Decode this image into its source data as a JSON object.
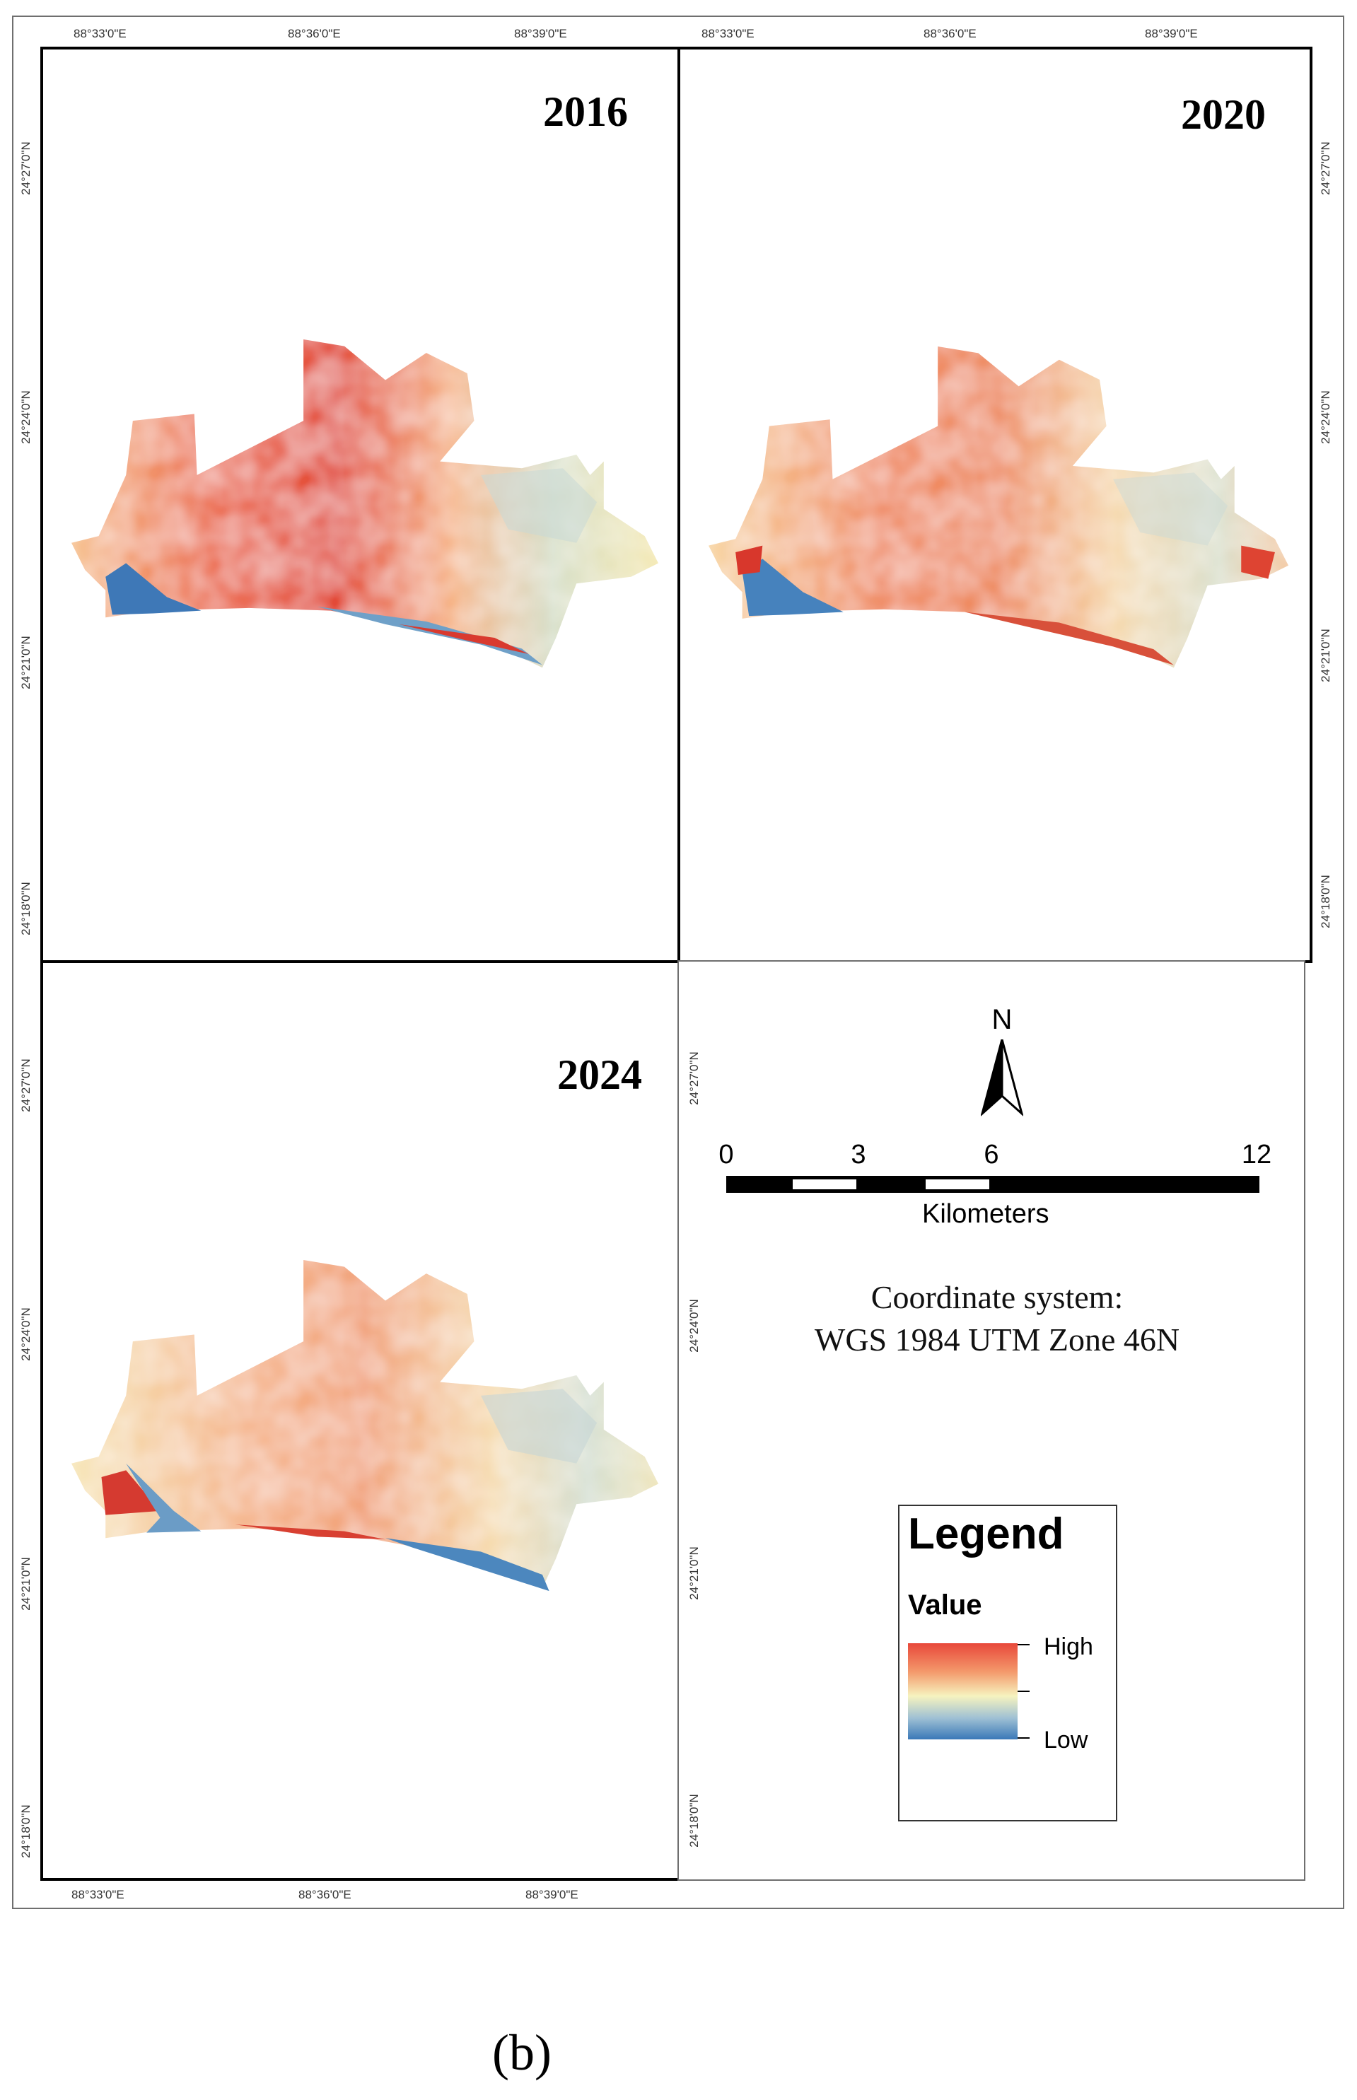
{
  "panels": {
    "p2016": {
      "year": "2016"
    },
    "p2020": {
      "year": "2020"
    },
    "p2024": {
      "year": "2024"
    }
  },
  "ticks": {
    "lon": [
      "88°33'0\"E",
      "88°36'0\"E",
      "88°39'0\"E"
    ],
    "lat": [
      "24°27'0\"N",
      "24°24'0\"N",
      "24°21'0\"N",
      "24°18'0\"N"
    ]
  },
  "north_arrow": {
    "label": "N"
  },
  "scale_bar": {
    "labels": [
      "0",
      "3",
      "6",
      "12"
    ],
    "unit": "Kilometers"
  },
  "coordinate_system": {
    "line1": "Coordinate system:",
    "line2": "WGS 1984 UTM Zone 46N"
  },
  "legend": {
    "title": "Legend",
    "field": "Value",
    "high": "High",
    "low": "Low",
    "colors": {
      "high": "#e8483a",
      "mid": "#f6f3bf",
      "low": "#3a78b8"
    }
  },
  "caption": "(b)"
}
